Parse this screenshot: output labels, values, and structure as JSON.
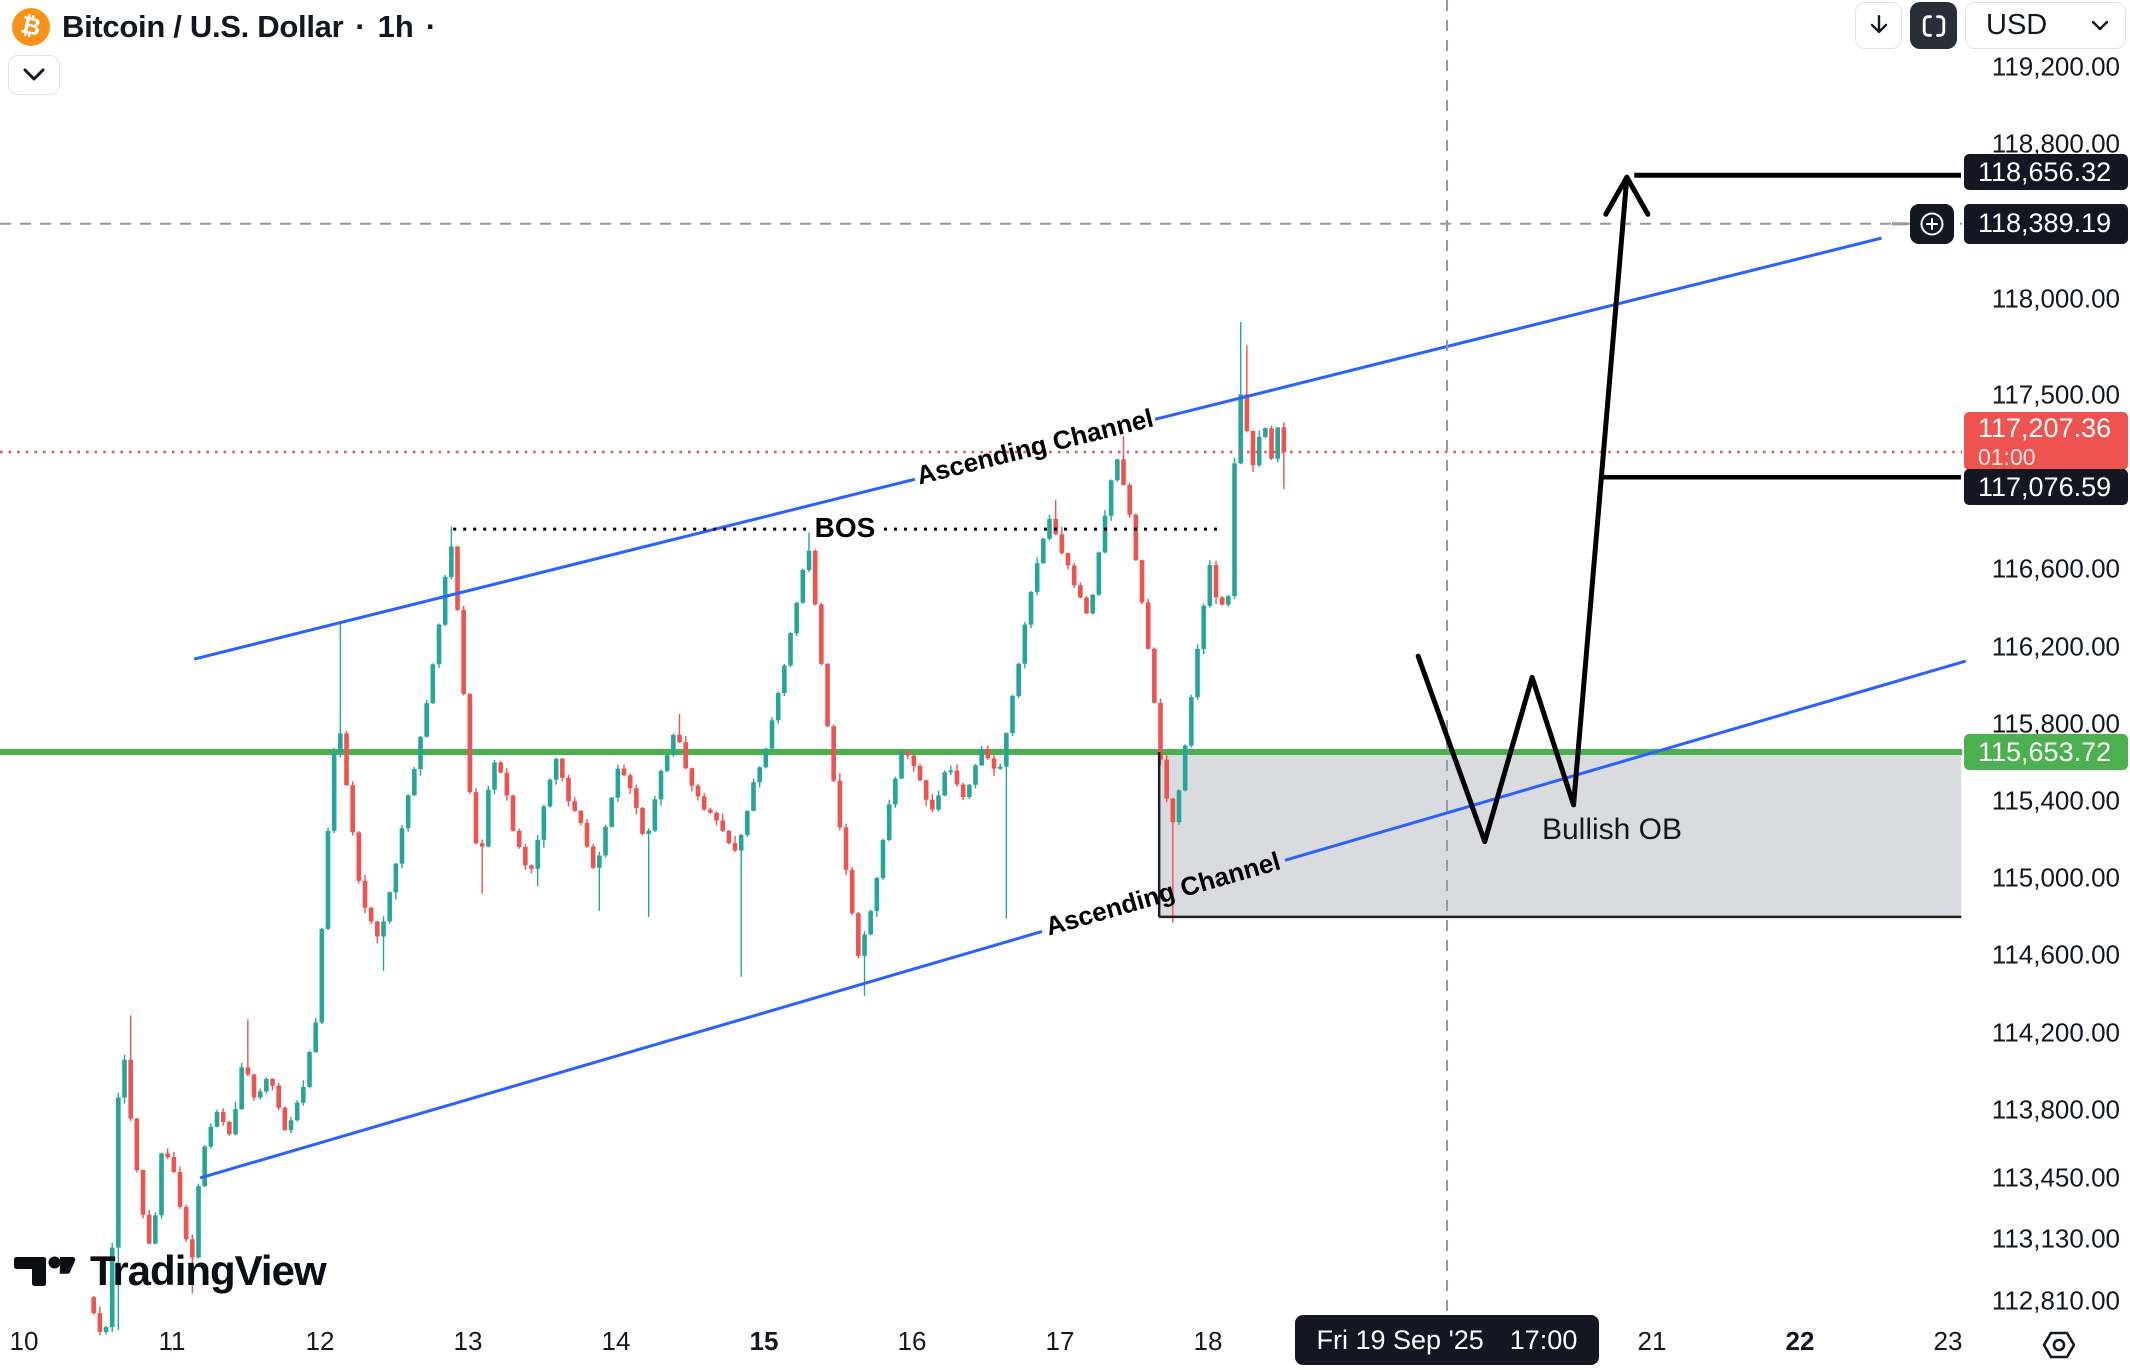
{
  "header": {
    "btc_glyph": "₿",
    "title": "Bitcoin / U.S. Dollar",
    "sep1": "·",
    "interval": "1h",
    "sep2": "·"
  },
  "top_right": {
    "currency": "USD"
  },
  "watermark": {
    "brand": "TradingView"
  },
  "annotations": {
    "bos": "BOS",
    "ascending_channel_upper": "Ascending Channel",
    "ascending_channel_lower": "Ascending Channel",
    "bullish_ob": "Bullish OB"
  },
  "price_labels": {
    "target": "118,656.32",
    "crosshair": "118,389.19",
    "last": "117,207.36",
    "countdown": "01:00",
    "entry": "117,076.59",
    "support": "115,653.72"
  },
  "time_axis": {
    "crosshair_date": "Fri 19 Sep '25",
    "crosshair_time": "17:00",
    "days": [
      {
        "label": "10",
        "day": 10,
        "bold": false
      },
      {
        "label": "11",
        "day": 11,
        "bold": false
      },
      {
        "label": "12",
        "day": 12,
        "bold": false
      },
      {
        "label": "13",
        "day": 13,
        "bold": false
      },
      {
        "label": "14",
        "day": 14,
        "bold": false
      },
      {
        "label": "15",
        "day": 15,
        "bold": true
      },
      {
        "label": "16",
        "day": 16,
        "bold": false
      },
      {
        "label": "17",
        "day": 17,
        "bold": false
      },
      {
        "label": "18",
        "day": 18,
        "bold": false
      },
      {
        "label": "21",
        "day": 21,
        "bold": false
      },
      {
        "label": "22",
        "day": 22,
        "bold": true
      },
      {
        "label": "23",
        "day": 23,
        "bold": false
      }
    ]
  },
  "price_axis_ticks": [
    {
      "label": "119,200.00",
      "price": 119200
    },
    {
      "label": "118,800.00",
      "price": 118800
    },
    {
      "label": "118,000.00",
      "price": 118000
    },
    {
      "label": "117,500.00",
      "price": 117500
    },
    {
      "label": "116,600.00",
      "price": 116600
    },
    {
      "label": "116,200.00",
      "price": 116200
    },
    {
      "label": "115,800.00",
      "price": 115800
    },
    {
      "label": "115,400.00",
      "price": 115400
    },
    {
      "label": "115,000.00",
      "price": 115000
    },
    {
      "label": "114,600.00",
      "price": 114600
    },
    {
      "label": "114,200.00",
      "price": 114200
    },
    {
      "label": "113,800.00",
      "price": 113800
    },
    {
      "label": "113,450.00",
      "price": 113450
    },
    {
      "label": "113,130.00",
      "price": 113130
    },
    {
      "label": "112,810.00",
      "price": 112810
    }
  ],
  "colors": {
    "up": "#26a69a",
    "down": "#ef5350",
    "support_green": "#4caf50",
    "channel_blue": "#2962ff",
    "last_price_red": "#ef5350",
    "label_dark_bg": "#131722",
    "crosshair_gray": "#9598a1",
    "ob_fill": "rgba(149,152,161,0.35)",
    "annotation_black": "#000000",
    "accent_orange": "#f7931a"
  },
  "chart_data": {
    "type": "candlestick",
    "symbol": "Bitcoin / U.S. Dollar",
    "interval": "1h",
    "quote_currency": "USD",
    "last_price": 117207.36,
    "bar_close_countdown": "01:00",
    "x_axis": {
      "unit": "day of Sep 2025",
      "visible_range": [
        9.84,
        23.1
      ],
      "tick_days": [
        10,
        11,
        12,
        13,
        14,
        15,
        16,
        17,
        18,
        21,
        22,
        23
      ]
    },
    "y_axis": {
      "visible_range": [
        112700,
        119550
      ],
      "tick_prices": [
        119200,
        118800,
        118000,
        117500,
        116600,
        116200,
        115800,
        115400,
        115000,
        114600,
        114200,
        113800,
        113450,
        113130,
        112810
      ]
    },
    "candle_start_day": 10.45,
    "candle_end_day": 18.5,
    "swings": [
      [
        10.45,
        112830
      ],
      [
        10.52,
        112700
      ],
      [
        10.56,
        112540
      ],
      [
        10.62,
        113120
      ],
      [
        10.66,
        113900
      ],
      [
        10.7,
        114060
      ],
      [
        10.76,
        113600
      ],
      [
        10.82,
        113280
      ],
      [
        10.88,
        113060
      ],
      [
        10.96,
        113640
      ],
      [
        11.04,
        113450
      ],
      [
        11.1,
        113200
      ],
      [
        11.15,
        112980
      ],
      [
        11.22,
        113560
      ],
      [
        11.32,
        113810
      ],
      [
        11.42,
        113650
      ],
      [
        11.5,
        114080
      ],
      [
        11.58,
        113840
      ],
      [
        11.68,
        113990
      ],
      [
        11.78,
        113680
      ],
      [
        11.9,
        113880
      ],
      [
        12.0,
        114300
      ],
      [
        12.08,
        115320
      ],
      [
        12.14,
        115880
      ],
      [
        12.2,
        115470
      ],
      [
        12.3,
        114890
      ],
      [
        12.42,
        114680
      ],
      [
        12.52,
        115010
      ],
      [
        12.62,
        115440
      ],
      [
        12.72,
        115800
      ],
      [
        12.82,
        116280
      ],
      [
        12.9,
        116770
      ],
      [
        12.96,
        116320
      ],
      [
        13.04,
        115380
      ],
      [
        13.1,
        115060
      ],
      [
        13.18,
        115620
      ],
      [
        13.26,
        115520
      ],
      [
        13.34,
        115200
      ],
      [
        13.44,
        115020
      ],
      [
        13.54,
        115390
      ],
      [
        13.62,
        115640
      ],
      [
        13.7,
        115390
      ],
      [
        13.8,
        115260
      ],
      [
        13.88,
        115000
      ],
      [
        13.96,
        115300
      ],
      [
        14.04,
        115590
      ],
      [
        14.14,
        115420
      ],
      [
        14.22,
        115180
      ],
      [
        14.32,
        115540
      ],
      [
        14.42,
        115770
      ],
      [
        14.52,
        115510
      ],
      [
        14.62,
        115360
      ],
      [
        14.72,
        115270
      ],
      [
        14.84,
        115120
      ],
      [
        14.94,
        115470
      ],
      [
        15.04,
        115690
      ],
      [
        15.14,
        116040
      ],
      [
        15.24,
        116420
      ],
      [
        15.32,
        116740
      ],
      [
        15.4,
        116180
      ],
      [
        15.48,
        115560
      ],
      [
        15.56,
        115120
      ],
      [
        15.66,
        114580
      ],
      [
        15.76,
        114880
      ],
      [
        15.86,
        115360
      ],
      [
        15.96,
        115700
      ],
      [
        16.06,
        115520
      ],
      [
        16.16,
        115340
      ],
      [
        16.26,
        115590
      ],
      [
        16.38,
        115400
      ],
      [
        16.48,
        115680
      ],
      [
        16.6,
        115520
      ],
      [
        16.72,
        116020
      ],
      [
        16.84,
        116560
      ],
      [
        16.94,
        116870
      ],
      [
        17.04,
        116680
      ],
      [
        17.14,
        116480
      ],
      [
        17.22,
        116350
      ],
      [
        17.32,
        116870
      ],
      [
        17.4,
        117210
      ],
      [
        17.48,
        116950
      ],
      [
        17.56,
        116500
      ],
      [
        17.64,
        116050
      ],
      [
        17.72,
        115480
      ],
      [
        17.79,
        115280
      ],
      [
        17.86,
        115640
      ],
      [
        17.94,
        116150
      ],
      [
        18.04,
        116650
      ],
      [
        18.09,
        116380
      ],
      [
        18.14,
        116450
      ],
      [
        18.17,
        116480
      ],
      [
        18.22,
        117580
      ],
      [
        18.27,
        117380
      ],
      [
        18.33,
        117130
      ],
      [
        18.39,
        117390
      ],
      [
        18.45,
        117180
      ],
      [
        18.5,
        117207.36
      ]
    ],
    "forced_wicks": [
      [
        10.47,
        112740,
        "low"
      ],
      [
        10.63,
        112660,
        "low"
      ],
      [
        10.7,
        114290,
        "high"
      ],
      [
        11.15,
        112850,
        "low"
      ],
      [
        11.5,
        114270,
        "high"
      ],
      [
        12.13,
        116330,
        "high"
      ],
      [
        12.44,
        114520,
        "low"
      ],
      [
        12.9,
        116820,
        "high"
      ],
      [
        13.1,
        114920,
        "low"
      ],
      [
        13.45,
        114960,
        "low"
      ],
      [
        13.88,
        114830,
        "low"
      ],
      [
        14.21,
        114800,
        "low"
      ],
      [
        14.43,
        115850,
        "high"
      ],
      [
        14.86,
        114490,
        "low"
      ],
      [
        15.32,
        116790,
        "high"
      ],
      [
        15.67,
        114390,
        "low"
      ],
      [
        16.62,
        114790,
        "low"
      ],
      [
        16.97,
        116960,
        "high"
      ],
      [
        17.41,
        117290,
        "high"
      ],
      [
        17.78,
        114770,
        "low"
      ],
      [
        18.21,
        117880,
        "high"
      ],
      [
        18.27,
        117760,
        "high"
      ]
    ],
    "levels": {
      "support_ray": {
        "price": 115653.72
      },
      "target_line": {
        "price": 118656.32,
        "from_day": 20.88
      },
      "entry_line": {
        "price": 117076.59,
        "from_day": 20.65
      },
      "bos_line": {
        "price": 116808,
        "from_day": 12.9,
        "to_day": 18.07
      },
      "last_price_line": {
        "price": 117207.36
      },
      "crosshair": {
        "day": 19.615,
        "price": 118389.19
      }
    },
    "channel": {
      "upper": {
        "from": [
          11.15,
          116135
        ],
        "to": [
          22.55,
          118315
        ],
        "label_gap_x": [
          915,
          1155
        ]
      },
      "lower": {
        "from": [
          11.19,
          113448
        ],
        "to": [
          23.12,
          116125
        ],
        "label_gap_x": [
          1042,
          1285
        ]
      }
    },
    "order_block": {
      "from_day": 17.67,
      "to_day": 23.09,
      "top_price": 115653.72,
      "bottom_price": 114800
    },
    "projection": {
      "path_day_price": [
        [
          19.42,
          116150
        ],
        [
          19.87,
          115190
        ],
        [
          20.19,
          116040
        ],
        [
          20.47,
          115380
        ],
        [
          20.83,
          118630
        ]
      ],
      "target_price": 118656.32
    }
  }
}
